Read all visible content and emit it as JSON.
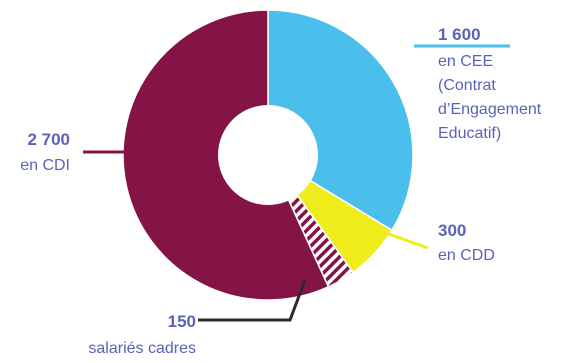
{
  "chart_data": {
    "type": "pie",
    "variant": "donut",
    "slices": [
      {
        "value": 1600,
        "value_label": "1 600",
        "label_lines": [
          "en CEE",
          "(Contrat",
          "d’Engagement",
          "Educatif)"
        ],
        "color": "#4bbfec",
        "leader_color": "#4bbfec"
      },
      {
        "value": 300,
        "value_label": "300",
        "label_lines": [
          "en CDD"
        ],
        "color": "#eeec1a",
        "leader_color": "#eeec1a"
      },
      {
        "value": 150,
        "value_label": "150",
        "label_lines": [
          "salariés cadres"
        ],
        "color": "#851446",
        "pattern": "hatched",
        "leader_color": "#2b2b2b"
      },
      {
        "value": 2700,
        "value_label": "2 700",
        "label_lines": [
          "en CDI"
        ],
        "color": "#851446",
        "leader_color": "#851446"
      }
    ],
    "legend": "none",
    "label_color": "#5a63b8"
  }
}
